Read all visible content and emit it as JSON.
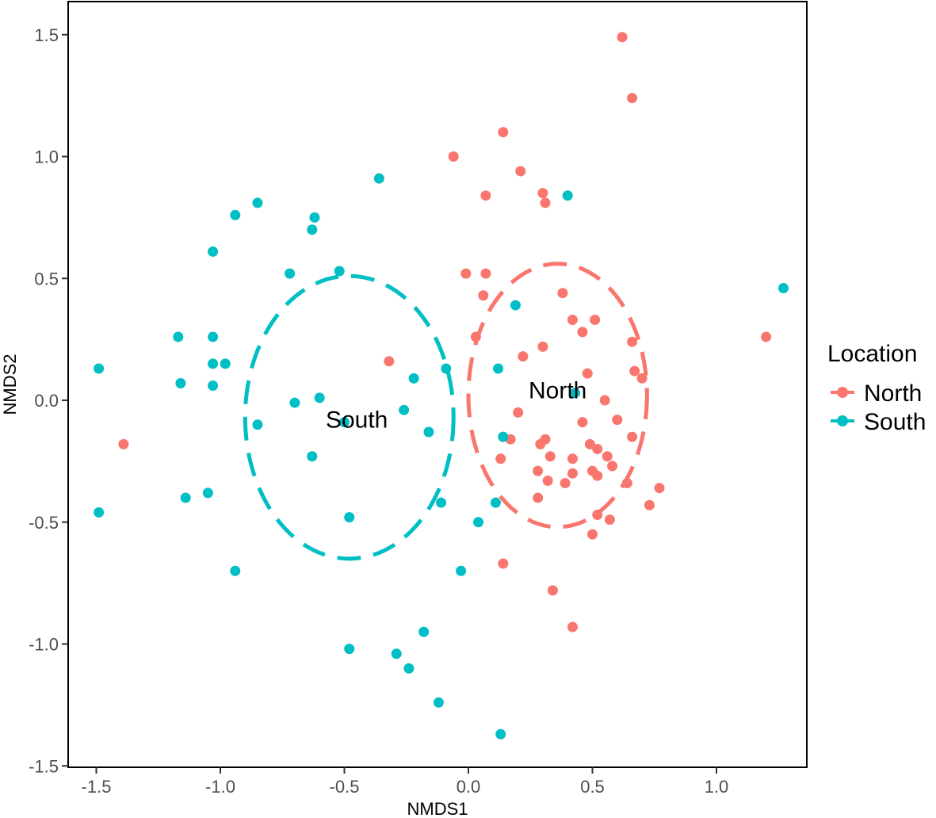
{
  "chart_data": {
    "type": "scatter",
    "title": "",
    "xlabel": "NMDS1",
    "ylabel": "NMDS2",
    "xlim": [
      -1.65,
      1.4
    ],
    "ylim": [
      -1.52,
      1.63
    ],
    "xticks": [
      -1.5,
      -1.0,
      -0.5,
      0.0,
      0.5,
      1.0
    ],
    "yticks": [
      -1.5,
      -1.0,
      -0.5,
      0.0,
      0.5,
      1.0,
      1.5
    ],
    "xtick_labels": [
      "-1.5",
      "-1.0",
      "-0.5",
      "0.0",
      "0.5",
      "1.0"
    ],
    "ytick_labels": [
      "-1.5",
      "-1.0",
      "-0.5",
      "0.0",
      "0.5",
      "1.0",
      "1.5"
    ],
    "grid": false,
    "legend": {
      "title": "Location",
      "position": "right",
      "entries": [
        "North",
        "South"
      ]
    },
    "series": [
      {
        "name": "North",
        "color": "#F8766D",
        "points": [
          [
            0.62,
            1.49
          ],
          [
            0.66,
            1.24
          ],
          [
            0.14,
            1.1
          ],
          [
            -0.06,
            1.0
          ],
          [
            0.21,
            0.94
          ],
          [
            0.07,
            0.84
          ],
          [
            0.3,
            0.85
          ],
          [
            0.31,
            0.81
          ],
          [
            -0.01,
            0.52
          ],
          [
            0.07,
            0.52
          ],
          [
            0.06,
            0.43
          ],
          [
            0.38,
            0.44
          ],
          [
            0.42,
            0.33
          ],
          [
            0.51,
            0.33
          ],
          [
            0.46,
            0.28
          ],
          [
            0.03,
            0.26
          ],
          [
            0.22,
            0.18
          ],
          [
            0.3,
            0.22
          ],
          [
            0.66,
            0.24
          ],
          [
            1.2,
            0.26
          ],
          [
            -0.32,
            0.16
          ],
          [
            0.48,
            0.11
          ],
          [
            0.67,
            0.12
          ],
          [
            0.7,
            0.09
          ],
          [
            0.55,
            -0.0
          ],
          [
            0.2,
            -0.05
          ],
          [
            0.46,
            -0.09
          ],
          [
            0.6,
            -0.08
          ],
          [
            0.17,
            -0.16
          ],
          [
            0.31,
            -0.16
          ],
          [
            0.29,
            -0.18
          ],
          [
            0.49,
            -0.18
          ],
          [
            0.52,
            -0.2
          ],
          [
            0.66,
            -0.15
          ],
          [
            0.56,
            -0.23
          ],
          [
            0.13,
            -0.24
          ],
          [
            0.33,
            -0.23
          ],
          [
            0.42,
            -0.24
          ],
          [
            0.28,
            -0.29
          ],
          [
            0.42,
            -0.3
          ],
          [
            0.5,
            -0.29
          ],
          [
            0.52,
            -0.31
          ],
          [
            0.58,
            -0.27
          ],
          [
            0.32,
            -0.33
          ],
          [
            0.39,
            -0.34
          ],
          [
            0.64,
            -0.34
          ],
          [
            0.77,
            -0.36
          ],
          [
            0.28,
            -0.4
          ],
          [
            0.73,
            -0.43
          ],
          [
            0.52,
            -0.47
          ],
          [
            0.57,
            -0.49
          ],
          [
            0.5,
            -0.55
          ],
          [
            0.14,
            -0.67
          ],
          [
            0.34,
            -0.78
          ],
          [
            0.42,
            -0.93
          ],
          [
            -1.39,
            -0.18
          ]
        ]
      },
      {
        "name": "South",
        "color": "#00BFC4",
        "points": [
          [
            1.27,
            0.46
          ],
          [
            0.4,
            0.84
          ],
          [
            -0.36,
            0.91
          ],
          [
            -0.85,
            0.81
          ],
          [
            -0.94,
            0.76
          ],
          [
            -0.62,
            0.75
          ],
          [
            -0.63,
            0.7
          ],
          [
            -1.03,
            0.61
          ],
          [
            -0.72,
            0.52
          ],
          [
            -0.52,
            0.53
          ],
          [
            0.19,
            0.39
          ],
          [
            -1.17,
            0.26
          ],
          [
            -1.03,
            0.26
          ],
          [
            -1.03,
            0.15
          ],
          [
            -0.98,
            0.15
          ],
          [
            -1.49,
            0.13
          ],
          [
            -0.09,
            0.13
          ],
          [
            0.12,
            0.13
          ],
          [
            -0.22,
            0.09
          ],
          [
            -1.16,
            0.07
          ],
          [
            -1.03,
            0.06
          ],
          [
            -0.6,
            0.01
          ],
          [
            -0.7,
            -0.01
          ],
          [
            0.43,
            0.03
          ],
          [
            -0.26,
            -0.04
          ],
          [
            -0.5,
            -0.09
          ],
          [
            -0.85,
            -0.1
          ],
          [
            -0.16,
            -0.13
          ],
          [
            0.14,
            -0.15
          ],
          [
            -0.63,
            -0.23
          ],
          [
            -1.14,
            -0.4
          ],
          [
            -1.05,
            -0.38
          ],
          [
            -0.11,
            -0.42
          ],
          [
            0.11,
            -0.42
          ],
          [
            -1.49,
            -0.46
          ],
          [
            -0.48,
            -0.48
          ],
          [
            0.04,
            -0.5
          ],
          [
            -0.94,
            -0.7
          ],
          [
            -0.03,
            -0.7
          ],
          [
            -0.48,
            -1.02
          ],
          [
            -0.29,
            -1.04
          ],
          [
            -0.24,
            -1.1
          ],
          [
            -0.18,
            -0.95
          ],
          [
            -0.12,
            -1.24
          ],
          [
            0.13,
            -1.37
          ]
        ]
      }
    ],
    "ellipses": [
      {
        "group": "North",
        "color": "#F8766D",
        "center": [
          0.36,
          0.02
        ],
        "radius_x": 0.36,
        "radius_y": 0.54,
        "label": "North",
        "label_at": [
          0.36,
          0.04
        ]
      },
      {
        "group": "South",
        "color": "#00BFC4",
        "center": [
          -0.48,
          -0.07
        ],
        "radius_x": 0.42,
        "radius_y": 0.58,
        "label": "South",
        "label_at": [
          -0.45,
          -0.08
        ]
      }
    ]
  }
}
